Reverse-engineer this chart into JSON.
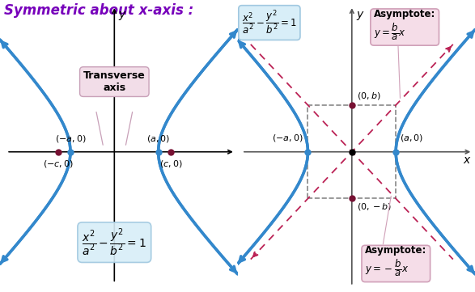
{
  "title": "Symmetric about x-axis :",
  "title_color": "#7700bb",
  "title_fontsize": 12,
  "bg_color": "#ffffff",
  "hyperbola_color": "#3388cc",
  "hyperbola_lw": 2.5,
  "asymptote_color": "#bb2255",
  "asymptote_lw": 1.3,
  "dot_color": "#771133",
  "a": 1.0,
  "b": 0.8,
  "left_panel": {
    "xlim": [
      -2.6,
      2.8
    ],
    "ylim": [
      -2.4,
      2.6
    ],
    "transverse_box": {
      "text": "Transverse\naxis",
      "facecolor": "#f2dde8",
      "edgecolor": "#c8a0b8"
    },
    "formula_box": {
      "facecolor": "#d8eef8",
      "edgecolor": "#a0c8e0"
    }
  },
  "right_panel": {
    "xlim": [
      -2.6,
      2.8
    ],
    "ylim": [
      -2.4,
      2.6
    ],
    "formula_box": {
      "facecolor": "#d8eef8",
      "edgecolor": "#a0c8e0"
    },
    "asym_top_box": {
      "facecolor": "#f5dde8",
      "edgecolor": "#d0a0b8"
    },
    "asym_bot_box": {
      "facecolor": "#f5dde8",
      "edgecolor": "#d0a0b8"
    }
  }
}
